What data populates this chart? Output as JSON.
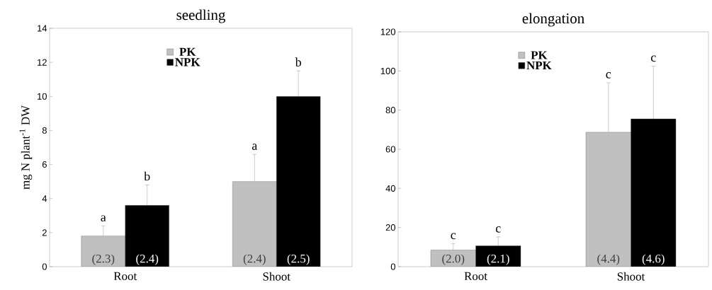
{
  "chart_data": [
    {
      "type": "bar",
      "title": "seedling",
      "ylabel": "mg N plant$^{-1}$ DW",
      "categories": [
        "Root",
        "Shoot"
      ],
      "series": [
        {
          "name": "PK",
          "color": "#c0c0c0",
          "values": [
            1.8,
            5.0
          ],
          "errors": [
            0.6,
            1.6
          ]
        },
        {
          "name": "NPK",
          "color": "#000000",
          "values": [
            3.6,
            10.0
          ],
          "errors": [
            1.2,
            1.5
          ]
        }
      ],
      "annotations": [
        "a",
        "b",
        "a",
        "b",
        "(2.3)",
        "(2.4)",
        "(2.4)",
        "(2.5)"
      ],
      "ylim": [
        0,
        14
      ],
      "yticks": [
        0,
        2,
        4,
        6,
        8,
        10,
        12,
        14
      ],
      "legend": "top"
    },
    {
      "type": "bar",
      "title": "elongation",
      "categories": [
        "Root",
        "Shoot"
      ],
      "series": [
        {
          "name": "PK",
          "color": "#c0c0c0",
          "values": [
            8.5,
            68.7
          ],
          "errors": [
            3.3,
            25.3
          ]
        },
        {
          "name": "NPK",
          "color": "#000000",
          "values": [
            10.7,
            75.5
          ],
          "errors": [
            4.5,
            27.0
          ]
        }
      ],
      "annotations": [
        "c",
        "c",
        "c",
        "c",
        "(2.0)",
        "(2.1)",
        "(4.4)",
        "(4.6)"
      ],
      "ylim": [
        0,
        120
      ],
      "yticks": [
        0,
        20,
        40,
        60,
        80,
        100,
        120
      ],
      "legend": "top"
    }
  ]
}
